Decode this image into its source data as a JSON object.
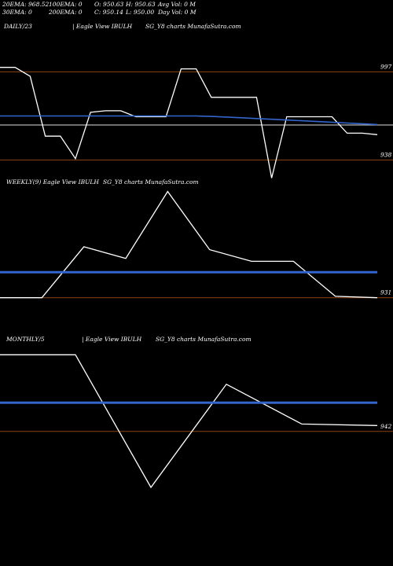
{
  "stats": {
    "ema20": "20EMA: 968.52",
    "ema100": "100EMA: 0",
    "open": "O: 950.63",
    "high": "H: 950.63",
    "avgvol": "Avg Vol: 0  M",
    "ema30": "30EMA: 0",
    "ema200": "200EMA: 0",
    "close": "C: 950.14",
    "low": "L: 950.00",
    "dayvol": "Day Vol: 0  M"
  },
  "panels": [
    {
      "period": "DAILY/23",
      "pipe": "| Eagle   View  IBULH",
      "site": "SG_Y8 charts MunafaSutra.com"
    },
    {
      "period": "WEEKLY(9) Eagle   View  IBULH",
      "pipe": "",
      "site": "SG_Y8 charts MunafaSutra.com"
    },
    {
      "period": "MONTHLY/5",
      "pipe": "| Eagle   View  IBULH",
      "site": "SG_Y8 charts MunafaSutra.com"
    }
  ],
  "colors": {
    "background": "#000000",
    "price": "#ffffff",
    "ema": "#3366cc",
    "level": "#8b4513",
    "ma_gray": "#b4b4b4"
  },
  "chart_data": [
    {
      "type": "line",
      "name": "DAILY",
      "ylim": [
        931,
        1003
      ],
      "tick_labels": [
        "997",
        "938"
      ],
      "levels": [
        997,
        938
      ],
      "gray_level": 961.5,
      "series": [
        {
          "role": "price",
          "values": [
            1000,
            1000,
            994,
            954,
            954,
            939,
            970,
            971,
            971,
            967,
            967,
            967,
            999,
            999,
            980,
            980,
            980,
            980,
            926,
            967,
            967,
            967,
            967,
            956,
            956,
            955
          ]
        },
        {
          "role": "ema",
          "values": [
            967.5,
            967.5,
            967.5,
            967.5,
            967.5,
            967.5,
            967.5,
            967.5,
            967.5,
            967.5,
            967.5,
            967.5,
            967.5,
            967.5,
            967.2,
            966.8,
            966.3,
            965.8,
            965.3,
            964.8,
            964.3,
            963.8,
            963.3,
            962.8,
            962.3,
            961.8
          ]
        }
      ]
    },
    {
      "type": "line",
      "name": "WEEKLY",
      "ylim": [
        926,
        1007
      ],
      "tick_labels": [
        "931"
      ],
      "levels": [
        931
      ],
      "series": [
        {
          "role": "price",
          "values": [
            931,
            931,
            966,
            958,
            1004,
            964,
            956,
            956,
            932,
            931
          ]
        },
        {
          "role": "ema",
          "values": [
            948.5,
            948.5,
            948.5,
            948.5,
            948.5,
            948.5,
            948.5,
            948.5,
            948.5,
            948.5
          ]
        }
      ]
    },
    {
      "type": "line",
      "name": "MONTHLY",
      "ylim": [
        888,
        1000
      ],
      "tick_labels": [
        "942"
      ],
      "levels": [
        942
      ],
      "series": [
        {
          "role": "price",
          "values": [
            994,
            994,
            904,
            974,
            947,
            946
          ]
        },
        {
          "role": "ema",
          "values": [
            961.5,
            961.5,
            961.5,
            961.5,
            961.5,
            961.5
          ]
        }
      ]
    }
  ]
}
